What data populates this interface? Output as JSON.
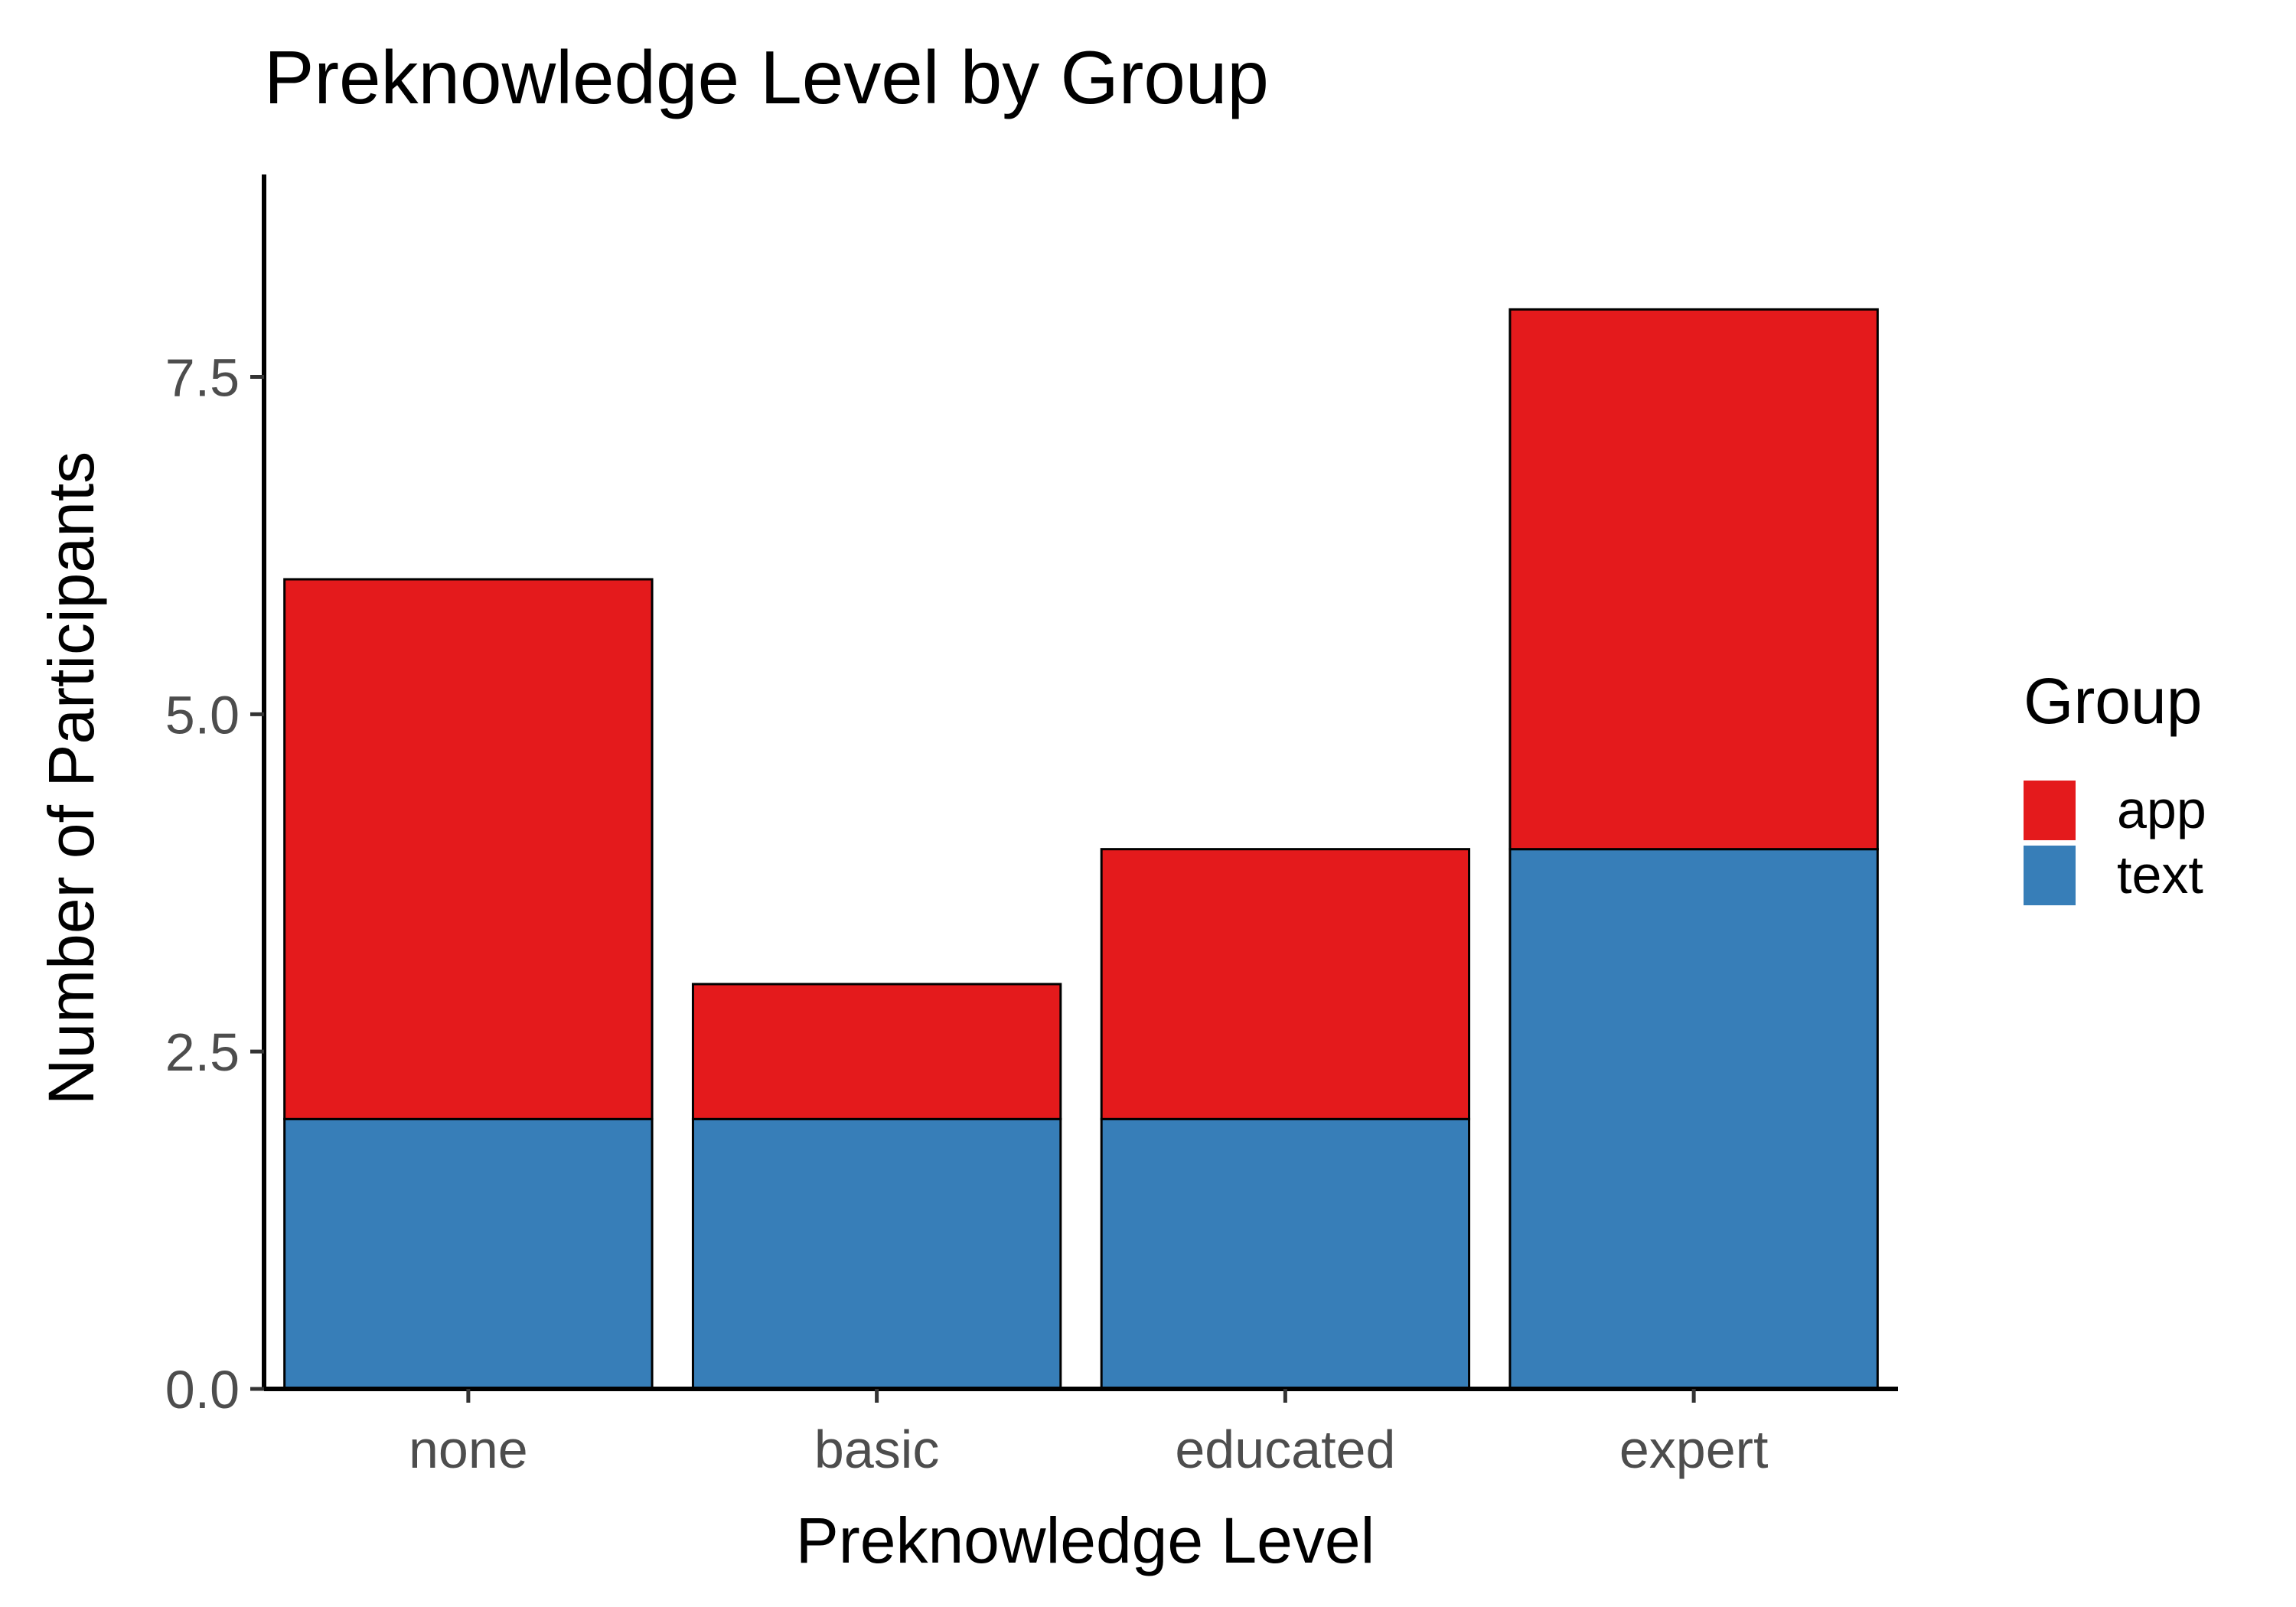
{
  "chart_data": {
    "type": "bar",
    "stacked": true,
    "title": "Preknowledge Level by Group",
    "xlabel": "Preknowledge Level",
    "ylabel": "Number of Participants",
    "categories": [
      "none",
      "basic",
      "educated",
      "expert"
    ],
    "series": [
      {
        "name": "text",
        "values": [
          2,
          2,
          2,
          4
        ],
        "color": "#377eb8"
      },
      {
        "name": "app",
        "values": [
          4,
          1,
          2,
          4
        ],
        "color": "#e41a1c"
      }
    ],
    "ylim": [
      0,
      9
    ],
    "yticks": [
      0,
      2.5,
      5,
      7.5
    ],
    "ytick_labels": [
      "0.0",
      "2.5",
      "5.0",
      "7.5"
    ],
    "legend": {
      "title": "Group",
      "placement": "right",
      "entries": [
        {
          "label": "app",
          "color": "#e41a1c"
        },
        {
          "label": "text",
          "color": "#377eb8"
        }
      ]
    },
    "grid": false
  }
}
